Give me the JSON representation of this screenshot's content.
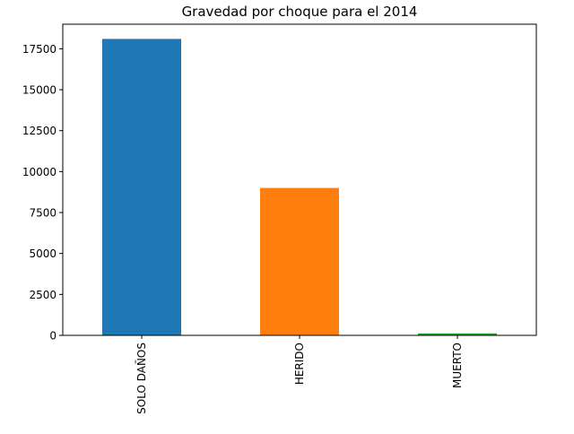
{
  "chart_data": {
    "type": "bar",
    "title": "Gravedad por choque para el 2014",
    "xlabel": "",
    "ylabel": "",
    "categories": [
      "SOLO DAÑOS",
      "HERIDO",
      "MUERTO"
    ],
    "values": [
      18100,
      9000,
      120
    ],
    "colors": [
      "#1f77b4",
      "#ff7f0e",
      "#2ca02c"
    ],
    "ylim": [
      0,
      19000
    ],
    "yticks": [
      0,
      2500,
      5000,
      7500,
      10000,
      12500,
      15000,
      17500
    ],
    "grid": false,
    "legend": "none"
  }
}
